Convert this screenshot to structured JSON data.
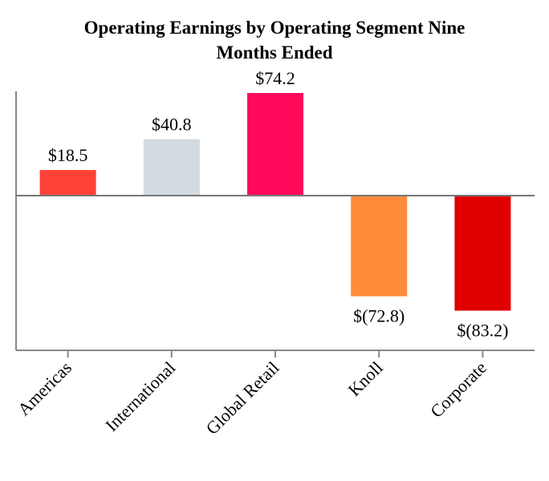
{
  "chart_data": {
    "type": "bar",
    "title_lines": [
      "Operating Earnings by Operating Segment Nine",
      "Months Ended"
    ],
    "categories": [
      "Americas",
      "International",
      "Global Retail",
      "Knoll",
      "Corporate"
    ],
    "values": [
      18.5,
      40.8,
      74.2,
      -72.8,
      -83.2
    ],
    "data_labels": [
      "$18.5",
      "$40.8",
      "$74.2",
      "$(72.8)",
      "$(83.2)"
    ],
    "colors": [
      "#FF4136",
      "#D3DBE0",
      "#FF0A5A",
      "#FF8C3A",
      "#E00000"
    ],
    "xlabel": "",
    "ylabel": "",
    "ylim": [
      -110,
      74.2
    ],
    "grid": false,
    "legend": "none"
  }
}
